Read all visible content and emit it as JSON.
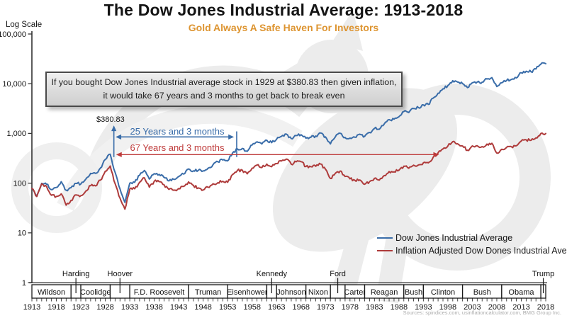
{
  "header": {
    "title": "The Dow Jones Industrial Average: 1913-2018",
    "subtitle": "Gold Always A Safe Haven For Investors"
  },
  "annotation_box": {
    "line1": "If you bought Dow Jones Industrial average stock in 1929 at $380.83 then given inflation,",
    "line2": "it would take 67 years and 3 months to get back to break even"
  },
  "callouts": {
    "peak_price": "$380.83"
  },
  "legend": [
    {
      "label": "Dow Jones Industrial Average",
      "color": "#3a6da9"
    },
    {
      "label": "Inflation Adjusted Dow Dones Industrial Average",
      "color": "#ae3b3b"
    }
  ],
  "footer": {
    "sources": "Sources: spindices.com, usinflationcalculator.com, BMG Group Inc."
  },
  "colors": {
    "subtitle_orange": "#dd9430",
    "blue": "#3a6da9",
    "red": "#ae3b3b",
    "red_bright": "#bf3b3b",
    "axis": "#333333",
    "text": "#141414",
    "watermark": "#ececec"
  },
  "presidents_timeline": [
    {
      "name": "Wildson",
      "start": 1913,
      "end": 1921,
      "label_position": "inside"
    },
    {
      "name": "Harding",
      "start": 1921,
      "end": 1923,
      "label_position": "above"
    },
    {
      "name": "Coolidge",
      "start": 1923,
      "end": 1929,
      "label_position": "inside"
    },
    {
      "name": "Hoover",
      "start": 1929,
      "end": 1933,
      "label_position": "above"
    },
    {
      "name": "F.D. Roosevelt",
      "start": 1933,
      "end": 1945,
      "label_position": "inside"
    },
    {
      "name": "Truman",
      "start": 1945,
      "end": 1953,
      "label_position": "inside"
    },
    {
      "name": "Eisenhower",
      "start": 1953,
      "end": 1961,
      "label_position": "inside"
    },
    {
      "name": "Kennedy",
      "start": 1961,
      "end": 1963,
      "label_position": "above"
    },
    {
      "name": "Johnson",
      "start": 1963,
      "end": 1969,
      "label_position": "inside"
    },
    {
      "name": "Nixon",
      "start": 1969,
      "end": 1974,
      "label_position": "inside"
    },
    {
      "name": "Ford",
      "start": 1974,
      "end": 1977,
      "label_position": "above"
    },
    {
      "name": "Carter",
      "start": 1977,
      "end": 1981,
      "label_position": "inside"
    },
    {
      "name": "Reagan",
      "start": 1981,
      "end": 1989,
      "label_position": "inside"
    },
    {
      "name": "Bush",
      "start": 1989,
      "end": 1993,
      "label_position": "inside"
    },
    {
      "name": "Clinton",
      "start": 1993,
      "end": 2001,
      "label_position": "inside"
    },
    {
      "name": "Bush",
      "start": 2001,
      "end": 2009,
      "label_position": "inside"
    },
    {
      "name": "Obama",
      "start": 2009,
      "end": 2017,
      "label_position": "inside"
    },
    {
      "name": "Trump",
      "start": 2017,
      "end": 2018,
      "label_position": "above"
    }
  ],
  "chart_data": {
    "type": "line",
    "title": "The Dow Jones Industrial Average: 1913-2018",
    "subtitle": "Gold Always A Safe Haven For Investors",
    "x_axis": {
      "start_year": 1913,
      "end_year": 2018,
      "minor_tick_every": 1,
      "tick_labels": [
        "1913",
        "1918",
        "1923",
        "1928",
        "1933",
        "1938",
        "1943",
        "1948",
        "1953",
        "1958",
        "1963",
        "1968",
        "1973",
        "1978",
        "1983",
        "1988",
        "1993",
        "1998",
        "2003",
        "2008",
        "2013",
        "2018"
      ]
    },
    "y_axis": {
      "label": "Log Scale",
      "scale": "log",
      "range": [
        1,
        100000
      ],
      "ticks": [
        {
          "value": 100000,
          "label": "100,000"
        },
        {
          "value": 10000,
          "label": "10,000"
        },
        {
          "value": 1000,
          "label": "1,000"
        },
        {
          "value": 100,
          "label": "100"
        },
        {
          "value": 10,
          "label": "10"
        },
        {
          "value": 1,
          "label": "1"
        }
      ]
    },
    "series": [
      {
        "name": "Dow Jones Industrial Average",
        "color": "#3a6da9",
        "start_year": 1913,
        "values": [
          78,
          54,
          99,
          95,
          74,
          82,
          107,
          72,
          81,
          99,
          96,
          120,
          157,
          157,
          202,
          300,
          381,
          165,
          77,
          41,
          100,
          104,
          144,
          180,
          121,
          155,
          150,
          131,
          111,
          119,
          136,
          152,
          193,
          177,
          181,
          177,
          200,
          235,
          269,
          292,
          281,
          404,
          488,
          499,
          436,
          584,
          679,
          616,
          731,
          652,
          763,
          874,
          969,
          786,
          905,
          944,
          800,
          839,
          890,
          1020,
          851,
          616,
          852,
          1005,
          831,
          805,
          839,
          964,
          875,
          1047,
          1259,
          1212,
          1547,
          1896,
          1939,
          2169,
          2753,
          2634,
          3169,
          3301,
          3754,
          3834,
          5117,
          6448,
          7908,
          9181,
          11497,
          10788,
          10021,
          8342,
          10454,
          10783,
          10718,
          12463,
          13265,
          8776,
          10428,
          11578,
          12218,
          13104,
          16577,
          17823,
          17425,
          19763,
          24719,
          25300
        ]
      },
      {
        "name": "Inflation Adjusted Dow Dones Industrial Average",
        "color": "#ae3b3b",
        "start_year": 1913,
        "values": [
          78,
          54,
          97,
          86,
          57,
          54,
          61,
          36,
          45,
          58,
          56,
          69,
          89,
          88,
          115,
          174,
          221,
          98,
          50,
          30,
          76,
          77,
          104,
          128,
          83,
          109,
          107,
          93,
          75,
          72,
          78,
          86,
          106,
          90,
          80,
          73,
          83,
          97,
          102,
          109,
          104,
          149,
          180,
          182,
          154,
          200,
          231,
          206,
          242,
          214,
          247,
          279,
          305,
          240,
          268,
          269,
          216,
          214,
          218,
          242,
          190,
          124,
          157,
          175,
          136,
          122,
          114,
          116,
          95,
          107,
          125,
          115,
          142,
          171,
          169,
          182,
          220,
          199,
          230,
          233,
          257,
          256,
          332,
          407,
          488,
          558,
          683,
          620,
          560,
          459,
          562,
          565,
          543,
          612,
          633,
          403,
          481,
          526,
          538,
          565,
          704,
          745,
          728,
          815,
          998,
          997
        ]
      }
    ],
    "annotations": {
      "peak_marker": {
        "year": 1929.75,
        "value": 380.83,
        "line_top_value": 1400
      },
      "recovery_marker": {
        "year": 1954.85,
        "top_value": 1100,
        "bottom_value": 335
      },
      "nominal_span": {
        "label": "25 Years and 3 months",
        "from_year": 1930.1,
        "to_year": 1954.3,
        "value": 850
      },
      "real_span": {
        "label": "67 Years and 3 months",
        "from_year": 1930.2,
        "to_year": 1996.2,
        "value": 375
      }
    }
  }
}
